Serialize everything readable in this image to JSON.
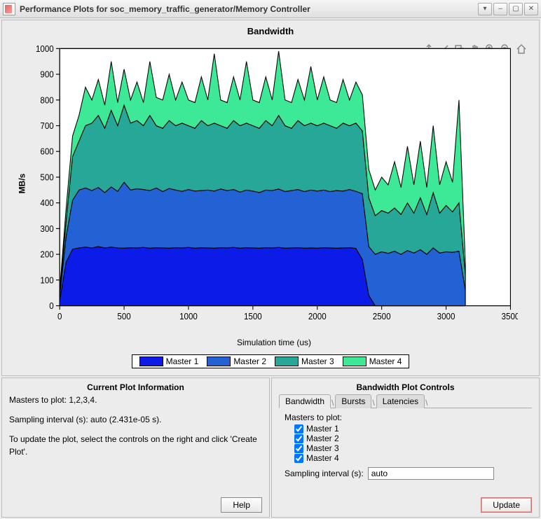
{
  "window": {
    "title": "Performance Plots for soc_memory_traffic_generator/Memory Controller"
  },
  "chart": {
    "type": "area-stacked",
    "title": "Bandwidth",
    "ylabel": "MB/s",
    "xlabel": "Simulation time (us)",
    "xlim": [
      0,
      3500
    ],
    "ylim": [
      0,
      1000
    ],
    "xtick_step": 500,
    "ytick_step": 100,
    "xticks": [
      0,
      500,
      1000,
      1500,
      2000,
      2500,
      3000,
      3500
    ],
    "yticks": [
      0,
      100,
      200,
      300,
      400,
      500,
      600,
      700,
      800,
      900,
      1000
    ],
    "background_color": "#ffffff",
    "axis_color": "#000000",
    "line_stroke": "#000000",
    "line_width": 1,
    "tick_fontsize": 11,
    "label_fontsize": 12,
    "title_fontsize": 13,
    "series": [
      {
        "name": "Master 1",
        "color": "#0c1be8"
      },
      {
        "name": "Master 2",
        "color": "#2262d4"
      },
      {
        "name": "Master 3",
        "color": "#27a798"
      },
      {
        "name": "Master 4",
        "color": "#3de897"
      }
    ],
    "x": [
      0,
      50,
      100,
      150,
      200,
      250,
      300,
      350,
      400,
      450,
      500,
      550,
      600,
      650,
      700,
      750,
      800,
      850,
      900,
      950,
      1000,
      1050,
      1100,
      1150,
      1200,
      1250,
      1300,
      1350,
      1400,
      1450,
      1500,
      1550,
      1600,
      1650,
      1700,
      1750,
      1800,
      1850,
      1900,
      1950,
      2000,
      2050,
      2100,
      2150,
      2200,
      2250,
      2300,
      2350,
      2400,
      2450,
      2500,
      2550,
      2600,
      2650,
      2700,
      2750,
      2800,
      2850,
      2900,
      2950,
      3000,
      3050,
      3100,
      3150
    ],
    "cum1": [
      20,
      170,
      220,
      225,
      228,
      225,
      230,
      225,
      228,
      225,
      224,
      226,
      225,
      227,
      224,
      226,
      225,
      224,
      226,
      225,
      227,
      224,
      226,
      225,
      224,
      226,
      225,
      227,
      224,
      226,
      225,
      224,
      226,
      225,
      227,
      224,
      225,
      226,
      224,
      225,
      224,
      226,
      225,
      224,
      225,
      226,
      223,
      180,
      40,
      0,
      0,
      0,
      0,
      0,
      0,
      0,
      0,
      0,
      0,
      0,
      0,
      0,
      0,
      0
    ],
    "cum2": [
      40,
      270,
      410,
      450,
      458,
      448,
      460,
      440,
      462,
      445,
      480,
      450,
      455,
      452,
      448,
      458,
      444,
      456,
      450,
      445,
      452,
      446,
      448,
      450,
      446,
      454,
      448,
      452,
      442,
      450,
      446,
      440,
      450,
      448,
      454,
      444,
      448,
      452,
      444,
      450,
      446,
      450,
      444,
      448,
      446,
      452,
      445,
      436,
      230,
      200,
      210,
      204,
      212,
      200,
      215,
      205,
      218,
      200,
      225,
      205,
      210,
      208,
      212,
      60
    ],
    "cum3": [
      50,
      330,
      580,
      640,
      700,
      710,
      740,
      690,
      760,
      700,
      780,
      710,
      720,
      700,
      740,
      700,
      690,
      720,
      700,
      710,
      700,
      690,
      720,
      700,
      710,
      700,
      690,
      720,
      700,
      710,
      700,
      690,
      720,
      700,
      740,
      700,
      690,
      720,
      700,
      710,
      700,
      710,
      700,
      690,
      710,
      700,
      710,
      680,
      420,
      350,
      370,
      360,
      380,
      355,
      400,
      360,
      420,
      355,
      440,
      360,
      390,
      365,
      400,
      120
    ],
    "cum4": [
      60,
      380,
      660,
      740,
      850,
      800,
      880,
      780,
      950,
      790,
      920,
      800,
      870,
      790,
      950,
      810,
      800,
      900,
      800,
      870,
      800,
      790,
      890,
      800,
      980,
      800,
      790,
      890,
      800,
      950,
      800,
      790,
      890,
      800,
      990,
      800,
      790,
      880,
      800,
      930,
      800,
      890,
      800,
      790,
      880,
      800,
      870,
      820,
      530,
      450,
      500,
      470,
      560,
      460,
      620,
      470,
      640,
      460,
      700,
      470,
      560,
      480,
      800,
      160
    ]
  },
  "toolbar_icons": [
    "export",
    "brush",
    "rect-zoom",
    "pan",
    "zoom-in",
    "zoom-out",
    "home"
  ],
  "info_panel": {
    "title": "Current Plot Information",
    "line1": "Masters to plot: 1,2,3,4.",
    "line2": "Sampling interval (s): auto (2.431e-05 s).",
    "line3": "To update the plot, select the controls on the right and click 'Create Plot'.",
    "help_label": "Help"
  },
  "controls_panel": {
    "title": "Bandwidth Plot Controls",
    "tabs": [
      "Bandwidth",
      "Bursts",
      "Latencies"
    ],
    "active_tab": 0,
    "masters_label": "Masters to plot:",
    "masters": [
      {
        "label": "Master 1",
        "checked": true
      },
      {
        "label": "Master 2",
        "checked": true
      },
      {
        "label": "Master 3",
        "checked": true
      },
      {
        "label": "Master 4",
        "checked": true
      }
    ],
    "interval_label": "Sampling interval (s):",
    "interval_value": "auto",
    "update_label": "Update"
  }
}
